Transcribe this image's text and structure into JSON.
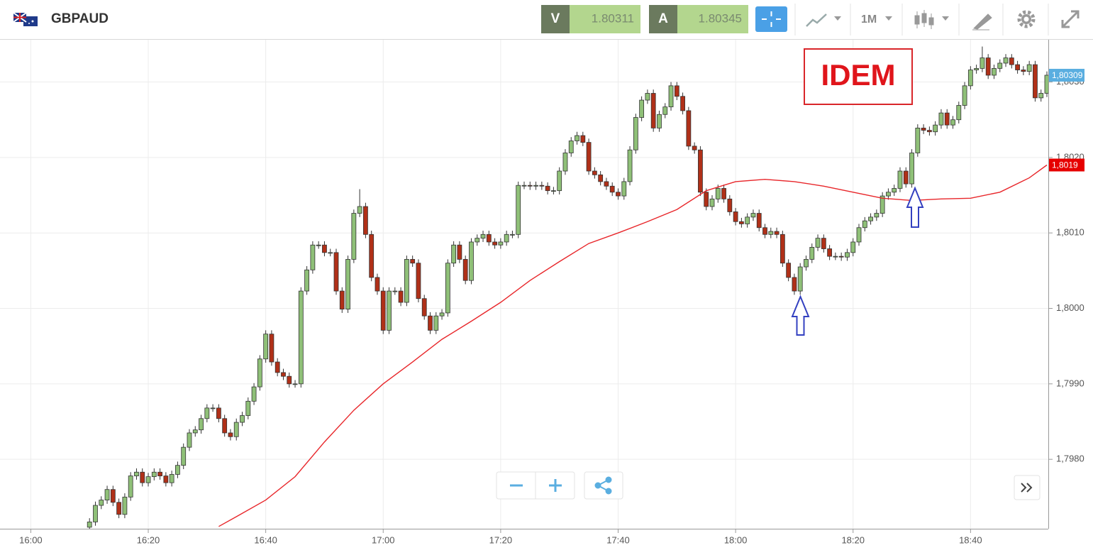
{
  "header": {
    "symbol": "GBPAUD",
    "sell_label": "V",
    "sell_price": "1.80311",
    "buy_label": "A",
    "buy_price": "1.80345",
    "timeframe": "1M"
  },
  "chart_data": {
    "type": "candlestick",
    "annotation": "IDEM",
    "up_color": "#8fc078",
    "down_color": "#b03018",
    "grid": true,
    "xlim": [
      "15:55",
      "18:53"
    ],
    "xticks": [
      "16:00",
      "16:20",
      "16:40",
      "17:00",
      "17:20",
      "17:40",
      "18:00",
      "18:20",
      "18:40"
    ],
    "ylim": [
      1.79708,
      1.80356
    ],
    "yticks": [
      {
        "value": 1.798,
        "label": "1,7980"
      },
      {
        "value": 1.799,
        "label": "1,7990"
      },
      {
        "value": 1.8,
        "label": "1,8000"
      },
      {
        "value": 1.801,
        "label": "1,8010"
      },
      {
        "value": 1.802,
        "label": "1,8020"
      },
      {
        "value": 1.803,
        "label": "1,8030"
      }
    ],
    "x": [
      "16:10",
      "16:11",
      "16:12",
      "16:13",
      "16:14",
      "16:15",
      "16:16",
      "16:17",
      "16:18",
      "16:19",
      "16:20",
      "16:21",
      "16:22",
      "16:23",
      "16:24",
      "16:25",
      "16:26",
      "16:27",
      "16:28",
      "16:29",
      "16:30",
      "16:31",
      "16:32",
      "16:33",
      "16:34",
      "16:35",
      "16:36",
      "16:37",
      "16:38",
      "16:39",
      "16:40",
      "16:41",
      "16:42",
      "16:43",
      "16:44",
      "16:45",
      "16:46",
      "16:47",
      "16:48",
      "16:49",
      "16:50",
      "16:51",
      "16:52",
      "16:53",
      "16:54",
      "16:55",
      "16:56",
      "16:57",
      "16:58",
      "16:59",
      "17:00",
      "17:01",
      "17:02",
      "17:03",
      "17:04",
      "17:05",
      "17:06",
      "17:07",
      "17:08",
      "17:09",
      "17:10",
      "17:11",
      "17:12",
      "17:13",
      "17:14",
      "17:15",
      "17:16",
      "17:17",
      "17:18",
      "17:19",
      "17:20",
      "17:21",
      "17:22",
      "17:23",
      "17:24",
      "17:25",
      "17:26",
      "17:27",
      "17:28",
      "17:29",
      "17:30",
      "17:31",
      "17:32",
      "17:33",
      "17:34",
      "17:35",
      "17:36",
      "17:37",
      "17:38",
      "17:39",
      "17:40",
      "17:41",
      "17:42",
      "17:43",
      "17:44",
      "17:45",
      "17:46",
      "17:47",
      "17:48",
      "17:49",
      "17:50",
      "17:51",
      "17:52",
      "17:53",
      "17:54",
      "17:55",
      "17:56",
      "17:57",
      "17:58",
      "17:59",
      "18:00",
      "18:01",
      "18:02",
      "18:03",
      "18:04",
      "18:05",
      "18:06",
      "18:07",
      "18:08",
      "18:09",
      "18:10",
      "18:11",
      "18:12",
      "18:13",
      "18:14",
      "18:15",
      "18:16",
      "18:17",
      "18:18",
      "18:19",
      "18:20",
      "18:21",
      "18:22",
      "18:23",
      "18:24",
      "18:25",
      "18:26",
      "18:27",
      "18:28",
      "18:29",
      "18:30",
      "18:31",
      "18:32",
      "18:33",
      "18:34",
      "18:35",
      "18:36",
      "18:37",
      "18:38",
      "18:39",
      "18:40",
      "18:41",
      "18:42",
      "18:43",
      "18:44",
      "18:45",
      "18:46",
      "18:47",
      "18:48",
      "18:49",
      "18:50",
      "18:51",
      "18:52",
      "18:53"
    ],
    "open": [
      1.7971,
      1.79717,
      1.79739,
      1.79746,
      1.7976,
      1.79743,
      1.79727,
      1.7975,
      1.79778,
      1.79783,
      1.79769,
      1.79777,
      1.79783,
      1.79778,
      1.79769,
      1.7978,
      1.79792,
      1.79816,
      1.79835,
      1.79839,
      1.79854,
      1.79868,
      1.79868,
      1.79854,
      1.79835,
      1.7983,
      1.79849,
      1.79858,
      1.79877,
      1.79896,
      1.79933,
      1.79966,
      1.79929,
      1.79915,
      1.7991,
      1.799,
      1.799,
      1.80023,
      1.80051,
      1.80084,
      1.80084,
      1.80074,
      1.80074,
      1.80023,
      1.79999,
      1.80065,
      1.80126,
      1.80135,
      1.80098,
      1.80041,
      1.80023,
      1.79971,
      1.80023,
      1.80023,
      1.80008,
      1.80065,
      1.8006,
      1.80013,
      1.7999,
      1.79971,
      1.7999,
      1.79994,
      1.8006,
      1.80084,
      1.80065,
      1.80037,
      1.80088,
      1.80093,
      1.80098,
      1.80088,
      1.80084,
      1.80088,
      1.80098,
      1.80098,
      1.80163,
      1.80163,
      1.80162,
      1.80163,
      1.80162,
      1.80156,
      1.80156,
      1.80182,
      1.80206,
      1.80222,
      1.80229,
      1.8022,
      1.80182,
      1.80177,
      1.80168,
      1.80162,
      1.80154,
      1.80149,
      1.80168,
      1.8021,
      1.80253,
      1.80276,
      1.80285,
      1.80239,
      1.80257,
      1.80267,
      1.80295,
      1.80281,
      1.80262,
      1.80215,
      1.8021,
      1.80154,
      1.80135,
      1.80145,
      1.80159,
      1.80145,
      1.80128,
      1.80115,
      1.80112,
      1.80121,
      1.80126,
      1.80107,
      1.80098,
      1.80102,
      1.80098,
      1.8006,
      1.80041,
      1.80023,
      1.80055,
      1.80065,
      1.80081,
      1.80093,
      1.80079,
      1.80069,
      1.80069,
      1.80068,
      1.80074,
      1.80088,
      1.80107,
      1.80116,
      1.80121,
      1.80126,
      1.80149,
      1.80154,
      1.80159,
      1.80182,
      1.80165,
      1.80206,
      1.80239,
      1.80236,
      1.80234,
      1.80243,
      1.80259,
      1.80243,
      1.8025,
      1.80269,
      1.80295,
      1.80316,
      1.80318,
      1.80332,
      1.80309,
      1.80318,
      1.80325,
      1.80332,
      1.80323,
      1.80316,
      1.80314,
      1.80323,
      1.80279,
      1.80285
    ],
    "high": [
      1.79722,
      1.79744,
      1.79751,
      1.79765,
      1.79765,
      1.79748,
      1.79755,
      1.79783,
      1.79788,
      1.79788,
      1.79782,
      1.79788,
      1.79788,
      1.79783,
      1.79785,
      1.79797,
      1.79821,
      1.7984,
      1.79844,
      1.79859,
      1.79873,
      1.79873,
      1.79873,
      1.79859,
      1.7984,
      1.79854,
      1.79863,
      1.79882,
      1.79901,
      1.79938,
      1.79971,
      1.79971,
      1.79934,
      1.7992,
      1.79915,
      1.79905,
      1.80028,
      1.80056,
      1.80089,
      1.80089,
      1.80089,
      1.80079,
      1.80079,
      1.80028,
      1.8007,
      1.80131,
      1.80158,
      1.8014,
      1.80103,
      1.80046,
      1.80028,
      1.80028,
      1.80028,
      1.80028,
      1.8007,
      1.8007,
      1.80065,
      1.80018,
      1.79995,
      1.79995,
      1.79999,
      1.80065,
      1.80089,
      1.80089,
      1.8007,
      1.80093,
      1.80098,
      1.80103,
      1.80103,
      1.80093,
      1.80093,
      1.80103,
      1.80103,
      1.80168,
      1.80168,
      1.80168,
      1.80168,
      1.80168,
      1.80167,
      1.80161,
      1.80187,
      1.80211,
      1.80227,
      1.80234,
      1.80234,
      1.80225,
      1.80187,
      1.80182,
      1.80173,
      1.80167,
      1.80159,
      1.80173,
      1.80215,
      1.80258,
      1.80281,
      1.8029,
      1.8029,
      1.80262,
      1.80272,
      1.803,
      1.803,
      1.80286,
      1.80267,
      1.8022,
      1.80215,
      1.80159,
      1.8015,
      1.80164,
      1.80164,
      1.8015,
      1.80133,
      1.8012,
      1.80126,
      1.80131,
      1.80131,
      1.80112,
      1.80107,
      1.80107,
      1.80103,
      1.80065,
      1.80046,
      1.8006,
      1.8007,
      1.80086,
      1.80098,
      1.80098,
      1.80084,
      1.80074,
      1.80074,
      1.80079,
      1.80093,
      1.80112,
      1.80121,
      1.80126,
      1.80131,
      1.80154,
      1.80159,
      1.80164,
      1.80187,
      1.80187,
      1.80211,
      1.80244,
      1.80244,
      1.80241,
      1.80248,
      1.80264,
      1.80264,
      1.80255,
      1.80274,
      1.803,
      1.80321,
      1.80323,
      1.80347,
      1.80337,
      1.80323,
      1.8033,
      1.80337,
      1.80337,
      1.80328,
      1.80321,
      1.80328,
      1.80328,
      1.8029,
      1.80314
    ],
    "low": [
      1.79705,
      1.79712,
      1.79734,
      1.79741,
      1.79738,
      1.79722,
      1.79722,
      1.79745,
      1.79773,
      1.79764,
      1.79764,
      1.79772,
      1.79773,
      1.79764,
      1.79764,
      1.79775,
      1.79787,
      1.79811,
      1.7983,
      1.79834,
      1.79849,
      1.79863,
      1.79849,
      1.7983,
      1.79825,
      1.79825,
      1.79844,
      1.79853,
      1.79872,
      1.79891,
      1.79928,
      1.79924,
      1.7991,
      1.79905,
      1.79895,
      1.79895,
      1.79895,
      1.80018,
      1.80046,
      1.80079,
      1.80069,
      1.80069,
      1.80018,
      1.79994,
      1.79994,
      1.8006,
      1.80121,
      1.80093,
      1.80036,
      1.80018,
      1.79966,
      1.79966,
      1.80018,
      1.80003,
      1.80003,
      1.80055,
      1.80008,
      1.79985,
      1.79966,
      1.79966,
      1.79985,
      1.79989,
      1.80055,
      1.8006,
      1.80032,
      1.80032,
      1.80083,
      1.80088,
      1.80083,
      1.80079,
      1.80079,
      1.80083,
      1.80093,
      1.80093,
      1.80158,
      1.80157,
      1.80157,
      1.80157,
      1.80151,
      1.80151,
      1.80151,
      1.80177,
      1.80201,
      1.80217,
      1.80215,
      1.80177,
      1.80172,
      1.80163,
      1.80157,
      1.80149,
      1.80144,
      1.80144,
      1.80163,
      1.80205,
      1.80248,
      1.80271,
      1.80234,
      1.80234,
      1.80252,
      1.80262,
      1.80276,
      1.80257,
      1.8021,
      1.80205,
      1.80149,
      1.8013,
      1.8013,
      1.8014,
      1.8014,
      1.80123,
      1.8011,
      1.80107,
      1.80107,
      1.80116,
      1.80102,
      1.80093,
      1.80093,
      1.80093,
      1.80055,
      1.80036,
      1.80018,
      1.80018,
      1.8005,
      1.8006,
      1.80076,
      1.80074,
      1.80064,
      1.80064,
      1.80063,
      1.80063,
      1.80069,
      1.80083,
      1.80102,
      1.80111,
      1.80116,
      1.80121,
      1.80144,
      1.80149,
      1.80154,
      1.8016,
      1.8016,
      1.80201,
      1.80231,
      1.80229,
      1.80229,
      1.80238,
      1.80238,
      1.80238,
      1.80245,
      1.80264,
      1.8029,
      1.80311,
      1.80313,
      1.80304,
      1.80304,
      1.80313,
      1.8032,
      1.80318,
      1.80311,
      1.80309,
      1.80309,
      1.80274,
      1.80274,
      1.8028
    ],
    "close": [
      1.79717,
      1.79739,
      1.79746,
      1.7976,
      1.79743,
      1.79727,
      1.7975,
      1.79778,
      1.79783,
      1.79769,
      1.79777,
      1.79783,
      1.79778,
      1.79769,
      1.7978,
      1.79792,
      1.79816,
      1.79835,
      1.79839,
      1.79854,
      1.79868,
      1.79868,
      1.79854,
      1.79835,
      1.7983,
      1.79849,
      1.79858,
      1.79877,
      1.79896,
      1.79933,
      1.79966,
      1.79929,
      1.79915,
      1.7991,
      1.799,
      1.799,
      1.80023,
      1.80051,
      1.80084,
      1.80084,
      1.80074,
      1.80074,
      1.80023,
      1.79999,
      1.80065,
      1.80126,
      1.80135,
      1.80098,
      1.80041,
      1.80023,
      1.79971,
      1.80023,
      1.80023,
      1.80008,
      1.80065,
      1.8006,
      1.80013,
      1.7999,
      1.79971,
      1.7999,
      1.79994,
      1.8006,
      1.80084,
      1.80065,
      1.80037,
      1.80088,
      1.80093,
      1.80098,
      1.80088,
      1.80084,
      1.80088,
      1.80098,
      1.80098,
      1.80163,
      1.80163,
      1.80162,
      1.80163,
      1.80162,
      1.80156,
      1.80156,
      1.80182,
      1.80206,
      1.80222,
      1.80229,
      1.8022,
      1.80182,
      1.80177,
      1.80168,
      1.80162,
      1.80154,
      1.80149,
      1.80168,
      1.8021,
      1.80253,
      1.80276,
      1.80285,
      1.80239,
      1.80257,
      1.80267,
      1.80295,
      1.80281,
      1.80262,
      1.80215,
      1.8021,
      1.80154,
      1.80135,
      1.80145,
      1.80159,
      1.80145,
      1.80128,
      1.80115,
      1.80112,
      1.80121,
      1.80126,
      1.80107,
      1.80098,
      1.80102,
      1.80098,
      1.8006,
      1.80041,
      1.80023,
      1.80055,
      1.80065,
      1.80081,
      1.80093,
      1.80079,
      1.80069,
      1.80069,
      1.80068,
      1.80074,
      1.80088,
      1.80107,
      1.80116,
      1.80121,
      1.80126,
      1.80149,
      1.80154,
      1.80159,
      1.80182,
      1.80165,
      1.80206,
      1.80239,
      1.80236,
      1.80234,
      1.80243,
      1.80259,
      1.80243,
      1.8025,
      1.80269,
      1.80295,
      1.80316,
      1.80318,
      1.80332,
      1.80309,
      1.80318,
      1.80325,
      1.80332,
      1.80323,
      1.80316,
      1.80314,
      1.80323,
      1.80279,
      1.80285,
      1.80309
    ],
    "ma": {
      "color": "#e8262a",
      "x": [
        "16:32",
        "16:35",
        "16:40",
        "16:45",
        "16:50",
        "16:55",
        "17:00",
        "17:05",
        "17:10",
        "17:15",
        "17:20",
        "17:25",
        "17:30",
        "17:35",
        "17:40",
        "17:45",
        "17:50",
        "17:55",
        "18:00",
        "18:05",
        "18:10",
        "18:15",
        "18:20",
        "18:25",
        "18:30",
        "18:35",
        "18:40",
        "18:45",
        "18:50",
        "18:53"
      ],
      "values": [
        1.79711,
        1.79724,
        1.79746,
        1.79777,
        1.79823,
        1.79865,
        1.799,
        1.79929,
        1.79959,
        1.79983,
        1.80008,
        1.80037,
        1.80062,
        1.80086,
        1.801,
        1.80115,
        1.80131,
        1.80156,
        1.80168,
        1.80171,
        1.80168,
        1.80162,
        1.80154,
        1.80146,
        1.80143,
        1.80145,
        1.80146,
        1.80154,
        1.80173,
        1.8019
      ]
    },
    "last_price": {
      "value": 1.80309,
      "label": "1,80309",
      "color": "#5aaee0"
    },
    "ma_last": {
      "value": 1.8019,
      "label": "1,8019",
      "color": "#e60000"
    }
  }
}
